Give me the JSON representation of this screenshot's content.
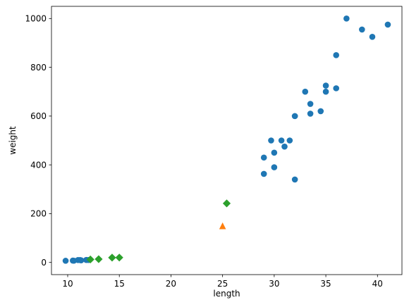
{
  "chart_data": {
    "type": "scatter",
    "title": "",
    "xlabel": "length",
    "ylabel": "weight",
    "xlim": [
      8.43,
      42.37
    ],
    "ylim": [
      -50,
      1050
    ],
    "xticks": [
      10,
      15,
      20,
      25,
      30,
      35,
      40
    ],
    "yticks": [
      0,
      200,
      400,
      600,
      800,
      1000
    ],
    "grid": false,
    "legend": false,
    "series": [
      {
        "marker": "circle",
        "color": "#1f77b4",
        "points": [
          [
            9.8,
            6.7
          ],
          [
            10.5,
            7.5
          ],
          [
            10.6,
            7.0
          ],
          [
            11.0,
            9.7
          ],
          [
            11.2,
            9.8
          ],
          [
            11.3,
            8.7
          ],
          [
            11.8,
            10.0
          ],
          [
            12.0,
            9.9
          ],
          [
            29.0,
            363
          ],
          [
            29.0,
            430
          ],
          [
            29.7,
            500
          ],
          [
            30.0,
            390
          ],
          [
            30.0,
            450
          ],
          [
            30.7,
            500
          ],
          [
            31.0,
            475
          ],
          [
            31.5,
            500
          ],
          [
            32.0,
            340
          ],
          [
            32.0,
            600
          ],
          [
            32.0,
            600
          ],
          [
            33.0,
            700
          ],
          [
            33.5,
            610
          ],
          [
            33.5,
            650
          ],
          [
            34.5,
            620
          ],
          [
            35.0,
            700
          ],
          [
            35.0,
            725
          ],
          [
            36.0,
            714
          ],
          [
            36.0,
            850
          ],
          [
            37.0,
            1000
          ],
          [
            38.5,
            955
          ],
          [
            39.5,
            925
          ],
          [
            41.0,
            975
          ]
        ]
      },
      {
        "marker": "diamond",
        "color": "#2ca02c",
        "points": [
          [
            12.2,
            12.2
          ],
          [
            13.0,
            13.4
          ],
          [
            14.3,
            19.7
          ],
          [
            15.0,
            19.9
          ],
          [
            25.4,
            242
          ]
        ]
      },
      {
        "marker": "triangle",
        "color": "#ff7f0e",
        "points": [
          [
            25.0,
            150
          ]
        ]
      }
    ]
  }
}
